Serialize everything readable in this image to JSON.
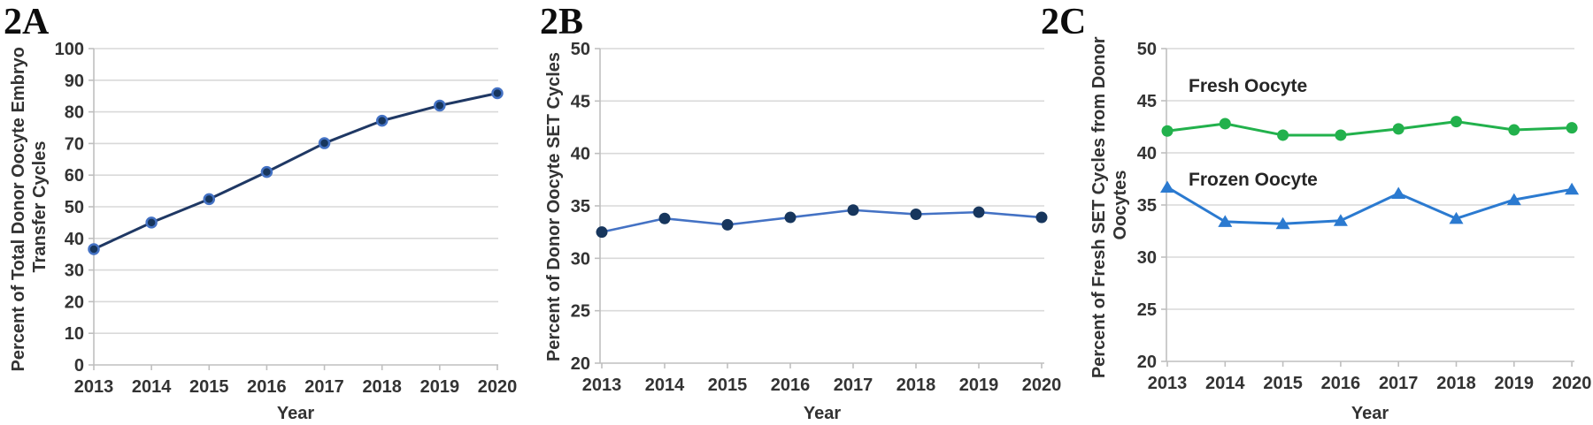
{
  "figure": {
    "background": "#ffffff",
    "grid_color": "#d9d9d9",
    "axis_color": "#bfbfbf",
    "text_color": "#333333"
  },
  "chart_data": [
    {
      "panel_label": "2A",
      "type": "line",
      "ylabel": "Percent of Total Donor Oocyte Embryo Transfer Cycles",
      "ylabel_lines": [
        "Percent of Total Donor Oocyte Embryo",
        "Transfer Cycles"
      ],
      "xlabel": "Year",
      "categories": [
        "2013",
        "2014",
        "2015",
        "2016",
        "2017",
        "2018",
        "2019",
        "2020"
      ],
      "yticks": [
        0,
        10,
        20,
        30,
        40,
        50,
        60,
        70,
        80,
        90,
        100
      ],
      "ylim": [
        0,
        100
      ],
      "grid": true,
      "legend": "none",
      "series": [
        {
          "name": "Percent of Total Donor Oocyte Embryo Transfer Cycles",
          "values": [
            36.6,
            45.0,
            52.4,
            61.0,
            70.1,
            77.2,
            82.0,
            85.9
          ],
          "line_color": "#1f3864",
          "marker": "circle",
          "marker_color": "#17365d",
          "marker_edge_color": "#4472c4"
        }
      ],
      "annotations": []
    },
    {
      "panel_label": "2B",
      "type": "line",
      "ylabel": "Percent of Donor Oocyte SET Cycles",
      "ylabel_lines": [
        "Percent of Donor Oocyte SET Cycles"
      ],
      "xlabel": "Year",
      "categories": [
        "2013",
        "2014",
        "2015",
        "2016",
        "2017",
        "2018",
        "2019",
        "2020"
      ],
      "yticks": [
        20,
        25,
        30,
        35,
        40,
        45,
        50
      ],
      "ylim": [
        20,
        50
      ],
      "grid": true,
      "legend": "none",
      "series": [
        {
          "name": "Percent of Donor Oocyte SET Cycles",
          "values": [
            32.5,
            33.8,
            33.2,
            33.9,
            34.6,
            34.2,
            34.4,
            33.9
          ],
          "line_color": "#4472c4",
          "marker": "circle",
          "marker_color": "#17365d",
          "marker_edge_color": "#17365d"
        }
      ],
      "annotations": []
    },
    {
      "panel_label": "2C",
      "type": "line",
      "ylabel": "Percent of Fresh SET Cycles from Donor Oocytes",
      "ylabel_lines": [
        "Percent of Fresh SET Cycles from Donor",
        "Oocytes"
      ],
      "xlabel": "Year",
      "categories": [
        "2013",
        "2014",
        "2015",
        "2016",
        "2017",
        "2018",
        "2019",
        "2020"
      ],
      "yticks": [
        20,
        25,
        30,
        35,
        40,
        45,
        50
      ],
      "ylim": [
        20,
        50
      ],
      "grid": true,
      "legend": "inline-labels",
      "series": [
        {
          "name": "Fresh Oocyte",
          "values": [
            42.1,
            42.8,
            41.7,
            41.7,
            42.3,
            43.0,
            42.2,
            42.4
          ],
          "line_color": "#22b14c",
          "marker": "circle",
          "marker_color": "#22b14c",
          "marker_edge_color": "#22b14c"
        },
        {
          "name": "Frozen Oocyte",
          "values": [
            36.7,
            33.4,
            33.2,
            33.5,
            36.1,
            33.7,
            35.5,
            36.5
          ],
          "line_color": "#2b7ad0",
          "marker": "triangle",
          "marker_color": "#2b7ad0",
          "marker_edge_color": "#2b7ad0"
        }
      ],
      "annotations": [
        {
          "text": "Fresh Oocyte"
        },
        {
          "text": "Frozen Oocyte"
        }
      ]
    }
  ]
}
